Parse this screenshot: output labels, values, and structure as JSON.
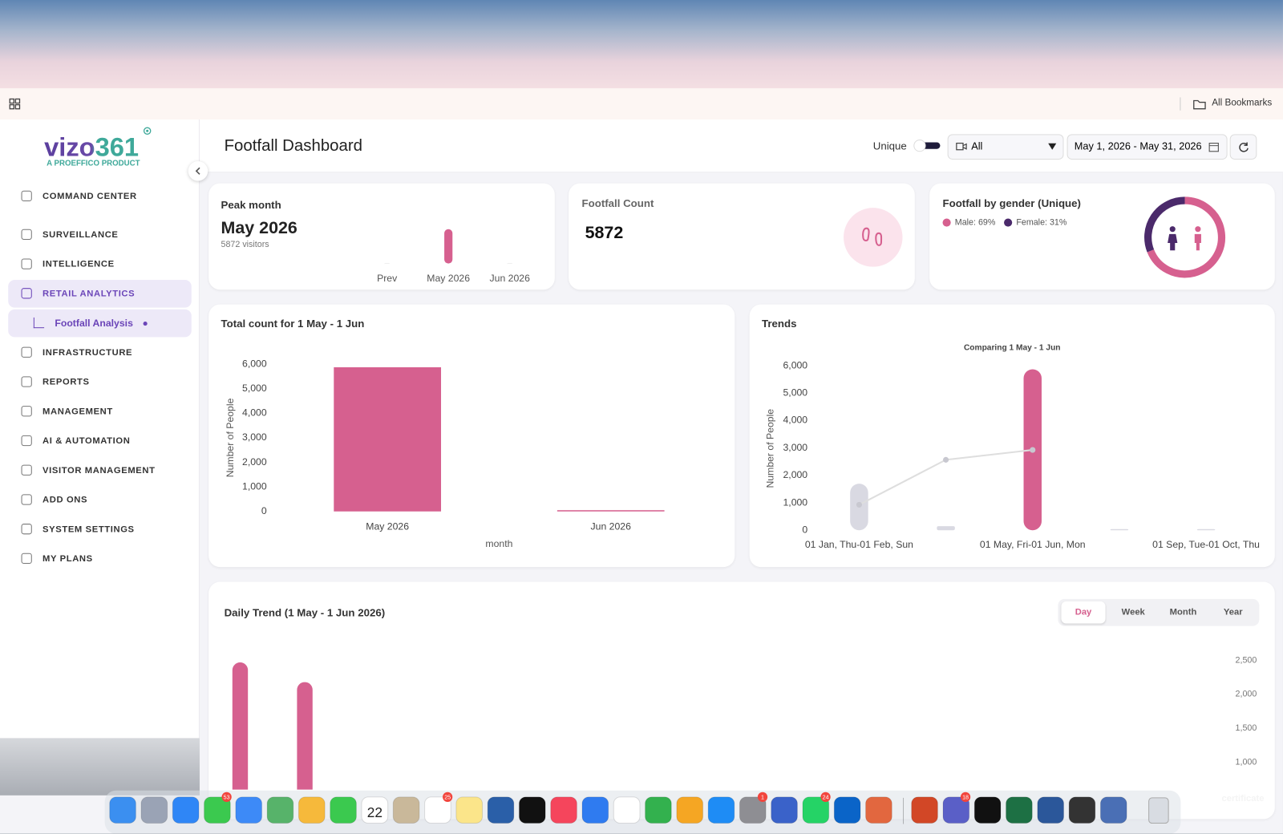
{
  "page": {
    "browser": {
      "bookmarks": "All Bookmarks"
    },
    "sidebar": {
      "logo": "vizo361",
      "tagline": "A PROEFFICO PRODUCT",
      "nav": [
        {
          "label": "COMMAND CENTER"
        },
        {
          "label": "SURVEILLANCE",
          "menu": true
        },
        {
          "label": "INTELLIGENCE",
          "menu": true
        },
        {
          "label": "RETAIL ANALYTICS",
          "menu": true,
          "open": true,
          "children": [
            {
              "label": "Footfall Analysis",
              "active": true
            }
          ]
        },
        {
          "label": "INFRASTRUCTURE",
          "menu": true
        },
        {
          "label": "REPORTS",
          "menu": true
        },
        {
          "label": "MANAGEMENT",
          "menu": true
        },
        {
          "label": "AI & AUTOMATION",
          "menu": true
        },
        {
          "label": "VISITOR MANAGEMENT",
          "menu": true
        },
        {
          "label": "ADD ONS",
          "menu": true
        },
        {
          "label": "SYSTEM SETTINGS",
          "menu": true
        },
        {
          "label": "MY PLANS",
          "menu": true
        }
      ]
    },
    "header": {
      "title": "Footfall Dashboard",
      "unique_label": "Unique",
      "camera_filter": "All",
      "date_range": "May 1, 2026 - May 31, 2026"
    },
    "footfall_count": {
      "title": "Footfall Count",
      "value": 5872
    },
    "dock": {
      "calendar_day": "22",
      "badges": [
        "53",
        "25",
        "1",
        "24",
        "18"
      ]
    },
    "desktop": {
      "label": "certificate"
    }
  },
  "chart_data": [
    {
      "type": "bar",
      "title": "Peak month",
      "headline": "May 2026",
      "subtitle": "5872 visitors",
      "categories": [
        "Prev",
        "May 2026",
        "Jun 2026"
      ],
      "values": [
        0,
        5872,
        0
      ],
      "color": "#d6608f"
    },
    {
      "type": "pie",
      "title": "Footfall by gender (Unique)",
      "values": [
        69,
        31
      ],
      "value_labels": [
        "Male: 69%",
        "Female: 31%"
      ],
      "colors": [
        "#d6608f",
        "#4b2a6b"
      ]
    },
    {
      "type": "bar",
      "title": "Total count for 1 May - 1 Jun",
      "categories": [
        "May 2026",
        "Jun 2026"
      ],
      "values": [
        5872,
        0
      ],
      "color": "#d6608f",
      "ylim": [
        0,
        6000
      ],
      "yticks": [
        0,
        {
          "value": 1000,
          "label": "1,000"
        },
        {
          "value": 2000,
          "label": "2,000"
        },
        {
          "value": 3000,
          "label": "3,000"
        },
        {
          "value": 4000,
          "label": "4,000"
        },
        {
          "value": 5000,
          "label": "5,000"
        },
        {
          "value": 6000,
          "label": "6,000"
        }
      ],
      "ylabel": "Number of People",
      "xlabel": "month"
    },
    {
      "type": "combo",
      "title": "Trends",
      "subtitle": "Comparing 1 May - 1 Jun",
      "categories": [
        "01 Jan, Thu-01 Feb, Sun",
        null,
        "01 May, Fri-01 Jun, Mon",
        null,
        "01 Sep, Tue-01 Oct, Thu"
      ],
      "series": [
        {
          "type": "bar",
          "values": [
            1700,
            150,
            5872,
            0,
            0
          ],
          "colors": [
            "#d9d9e2",
            "#d9d9e2",
            "#d6608f",
            "#d9d9e2",
            "#d9d9e2"
          ]
        },
        {
          "type": "line",
          "values": [
            930,
            2570,
            2930,
            null,
            null
          ],
          "color": "#dedede"
        }
      ],
      "ylim": [
        0,
        6000
      ],
      "yticks": [
        0,
        {
          "value": 1000,
          "label": "1,000"
        },
        {
          "value": 2000,
          "label": "2,000"
        },
        {
          "value": 3000,
          "label": "3,000"
        },
        {
          "value": 4000,
          "label": "4,000"
        },
        {
          "value": 5000,
          "label": "5,000"
        },
        {
          "value": 6000,
          "label": "6,000"
        }
      ],
      "ylabel": "Number of People"
    },
    {
      "type": "bar",
      "title": "Daily Trend (1 May - 1 Jun 2026)",
      "periods": [
        "Day",
        "Week",
        "Month",
        "Year"
      ],
      "active_period": 0,
      "categories": [
        null,
        null
      ],
      "values": [
        2470,
        2180
      ],
      "color": "#d6608f",
      "ylim": [
        0,
        2500
      ],
      "yticks": [
        {
          "value": 1000,
          "label": "1,000"
        },
        {
          "value": 1500,
          "label": "1,500"
        },
        {
          "value": 2000,
          "label": "2,000"
        },
        {
          "value": 2500,
          "label": "2,500"
        }
      ],
      "axis_side": "right"
    }
  ]
}
